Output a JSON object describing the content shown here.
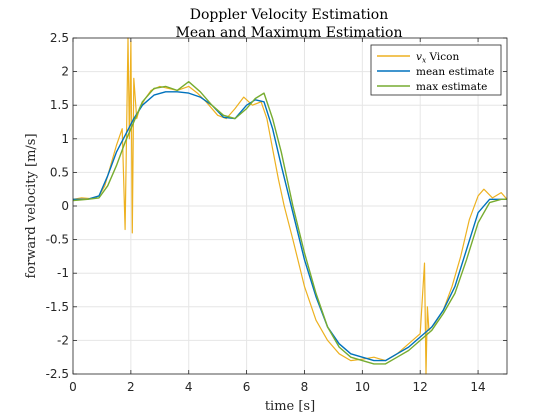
{
  "chart_data": {
    "type": "line",
    "title": "Doppler Velocity Estimation",
    "subtitle": "Mean and Maximum Estimation",
    "xlabel": "time [s]",
    "ylabel": "forward velocity [m/s]",
    "xlim": [
      0,
      15
    ],
    "ylim": [
      -2.5,
      2.5
    ],
    "xticks": [
      "0",
      "2",
      "4",
      "6",
      "8",
      "10",
      "12",
      "14"
    ],
    "xtick_values": [
      0,
      2,
      4,
      6,
      8,
      10,
      12,
      14
    ],
    "yticks": [
      "2.5",
      "2",
      "1.5",
      "1",
      "0.5",
      "0",
      "-0.5",
      "-1",
      "-1.5",
      "-2",
      "-2.5"
    ],
    "ytick_values": [
      2.5,
      2,
      1.5,
      1,
      0.5,
      0,
      -0.5,
      -1,
      -1.5,
      -2,
      -2.5
    ],
    "grid": true,
    "legend_position": "top-right",
    "series": [
      {
        "name": "v_x Vicon",
        "name_main": "v",
        "name_sub": "x",
        "name_rest": " Vicon",
        "color": "#EDB120",
        "x": [
          0,
          0.3,
          0.6,
          0.9,
          1.1,
          1.3,
          1.5,
          1.7,
          1.8,
          1.9,
          1.95,
          2.0,
          2.05,
          2.1,
          2.2,
          2.3,
          2.5,
          2.7,
          3.0,
          3.3,
          3.6,
          4.0,
          4.3,
          4.6,
          5.0,
          5.3,
          5.6,
          5.9,
          6.2,
          6.5,
          6.7,
          6.9,
          7.1,
          7.3,
          7.6,
          8.0,
          8.4,
          8.8,
          9.2,
          9.6,
          10.0,
          10.4,
          10.8,
          11.2,
          11.6,
          12.0,
          12.15,
          12.2,
          12.25,
          12.3,
          12.5,
          12.8,
          13.1,
          13.4,
          13.7,
          14.0,
          14.2,
          14.5,
          14.8,
          15.0
        ],
        "y": [
          0.1,
          0.12,
          0.11,
          0.15,
          0.3,
          0.6,
          0.9,
          1.15,
          -0.35,
          2.5,
          1.0,
          2.45,
          -0.4,
          1.9,
          1.3,
          1.45,
          1.6,
          1.72,
          1.78,
          1.75,
          1.72,
          1.78,
          1.68,
          1.55,
          1.35,
          1.3,
          1.45,
          1.62,
          1.5,
          1.55,
          1.3,
          0.85,
          0.4,
          0.0,
          -0.5,
          -1.2,
          -1.7,
          -2.0,
          -2.2,
          -2.3,
          -2.28,
          -2.25,
          -2.3,
          -2.2,
          -2.05,
          -1.9,
          -0.85,
          -2.5,
          -1.5,
          -1.85,
          -1.75,
          -1.55,
          -1.2,
          -0.75,
          -0.2,
          0.15,
          0.25,
          0.12,
          0.2,
          0.1
        ]
      },
      {
        "name": "mean estimate",
        "color": "#0072BD",
        "x": [
          0,
          0.5,
          0.9,
          1.2,
          1.5,
          1.8,
          2.1,
          2.4,
          2.8,
          3.2,
          3.6,
          4.0,
          4.4,
          4.8,
          5.2,
          5.6,
          6.0,
          6.3,
          6.6,
          6.9,
          7.2,
          7.6,
          8.0,
          8.4,
          8.8,
          9.2,
          9.6,
          10.0,
          10.4,
          10.8,
          11.2,
          11.6,
          12.0,
          12.4,
          12.8,
          13.2,
          13.6,
          14.0,
          14.4,
          14.8,
          15.0
        ],
        "y": [
          0.1,
          0.1,
          0.15,
          0.45,
          0.8,
          1.05,
          1.3,
          1.5,
          1.65,
          1.7,
          1.7,
          1.68,
          1.62,
          1.5,
          1.32,
          1.3,
          1.5,
          1.58,
          1.55,
          1.15,
          0.6,
          -0.1,
          -0.8,
          -1.35,
          -1.8,
          -2.05,
          -2.2,
          -2.25,
          -2.3,
          -2.3,
          -2.2,
          -2.1,
          -1.95,
          -1.8,
          -1.55,
          -1.2,
          -0.65,
          -0.1,
          0.1,
          0.1,
          0.1
        ]
      },
      {
        "name": "max estimate",
        "color": "#77AC30",
        "x": [
          0,
          0.5,
          0.9,
          1.2,
          1.5,
          1.8,
          2.1,
          2.4,
          2.8,
          3.2,
          3.6,
          4.0,
          4.4,
          4.8,
          5.2,
          5.6,
          6.0,
          6.3,
          6.6,
          6.9,
          7.2,
          7.6,
          8.0,
          8.4,
          8.8,
          9.2,
          9.6,
          10.0,
          10.4,
          10.8,
          11.2,
          11.6,
          12.0,
          12.4,
          12.8,
          13.2,
          13.6,
          14.0,
          14.4,
          14.8,
          15.0
        ],
        "y": [
          0.08,
          0.1,
          0.12,
          0.3,
          0.6,
          0.95,
          1.25,
          1.55,
          1.75,
          1.78,
          1.72,
          1.85,
          1.7,
          1.5,
          1.35,
          1.3,
          1.45,
          1.6,
          1.68,
          1.3,
          0.8,
          0.0,
          -0.7,
          -1.3,
          -1.8,
          -2.1,
          -2.25,
          -2.3,
          -2.35,
          -2.35,
          -2.25,
          -2.15,
          -2.0,
          -1.85,
          -1.6,
          -1.3,
          -0.8,
          -0.25,
          0.05,
          0.1,
          0.1
        ]
      }
    ]
  }
}
